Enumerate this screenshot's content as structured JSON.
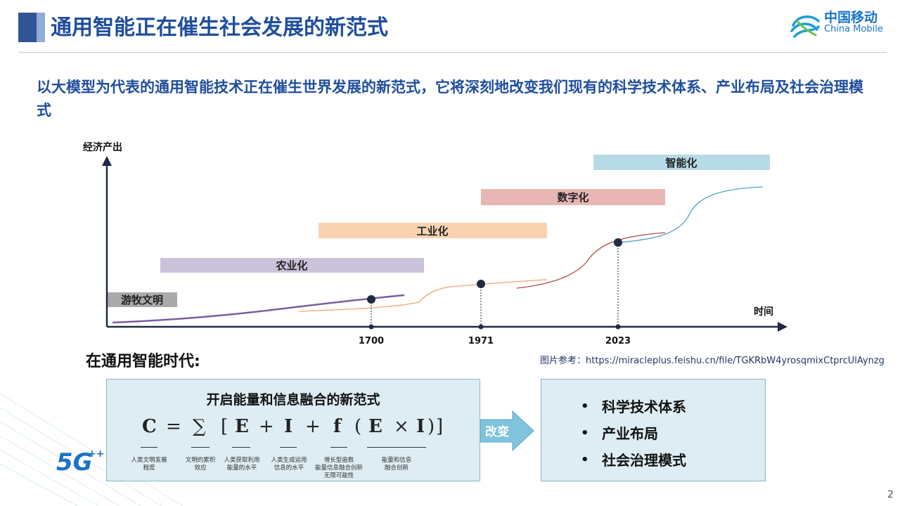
{
  "header": {
    "title": "通用智能正在催生社会发展的新范式",
    "logo_cn": "中国移动",
    "logo_en": "China Mobile"
  },
  "subtitle": "以大模型为代表的通用智能技术正在催生世界发展的新范式，它将深刻地改变我们现有的科学技术体系、产业布局及社会治理模式",
  "chart_data": {
    "type": "line",
    "ylabel": "经济产出",
    "xlabel": "时间",
    "eras": [
      {
        "name": "游牧文明",
        "color": "#aaaaaa"
      },
      {
        "name": "农业化",
        "color": "#cbc3dc"
      },
      {
        "name": "工业化",
        "color": "#f9d3b0"
      },
      {
        "name": "数字化",
        "color": "#e9b6b6"
      },
      {
        "name": "智能化",
        "color": "#b7dbe6"
      }
    ],
    "milestones": [
      "1700",
      "1971",
      "2023"
    ],
    "curve_colors": [
      "#7a5fa0",
      "#f2a56b",
      "#b5474a",
      "#4aa3c7"
    ]
  },
  "era_heading": "在通用智能时代:",
  "reference": "图片参考：https://miracleplus.feishu.cn/file/TGKRbW4yrosqmixCtprcUlAynzg",
  "formula_box": {
    "title": "开启能量和信息融合的新范式",
    "symbols": [
      "C",
      "=",
      "∑",
      "[",
      "E",
      "+",
      "I",
      "+",
      "f",
      "(",
      "E",
      "×",
      "I",
      ")",
      "]"
    ],
    "notes": [
      [
        "人类文明发展",
        "程度"
      ],
      [
        "文明的累积",
        "效应"
      ],
      [
        "人类获取利用",
        "能量的水平"
      ],
      [
        "人类生成运用",
        "信息的水平"
      ],
      [
        "增长型函数",
        "能量信息融合创新",
        "无限可能性"
      ],
      [
        "能量和信息",
        "融合创新"
      ]
    ]
  },
  "arrow_label": "改变",
  "impacts": [
    "科学技术体系",
    "产业布局",
    "社会治理模式"
  ],
  "badge": {
    "text": "5G",
    "plus": "++"
  },
  "page_number": "2"
}
